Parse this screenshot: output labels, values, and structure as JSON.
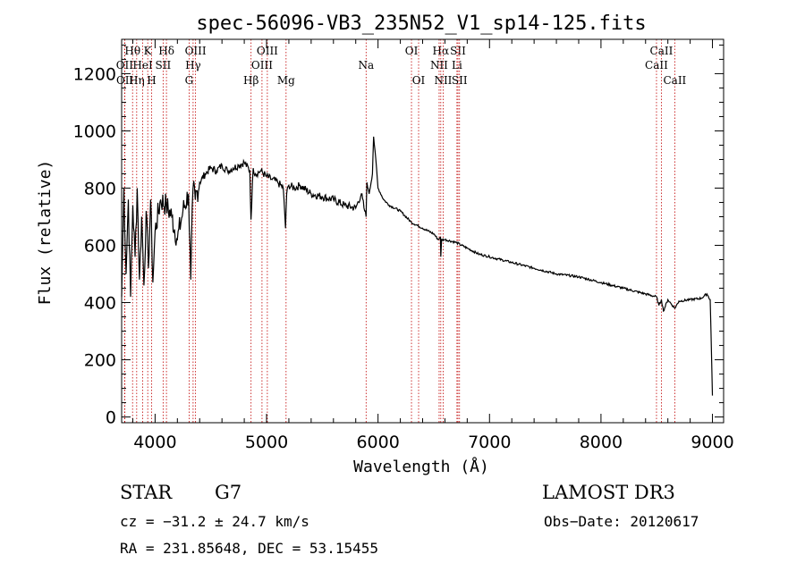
{
  "chart_data": {
    "type": "line",
    "title": "spec-56096-VB3_235N52_V1_sp14-125.fits",
    "xlabel": "Wavelength (Å)",
    "ylabel": "Flux (relative)",
    "xlim": [
      3700,
      9100
    ],
    "ylim": [
      -20,
      1320
    ],
    "xticks": [
      4000,
      5000,
      6000,
      7000,
      8000,
      9000
    ],
    "yticks": [
      0,
      200,
      400,
      600,
      800,
      1000,
      1200
    ],
    "series": [
      {
        "name": "flux",
        "x": [
          3700,
          3720,
          3740,
          3760,
          3780,
          3800,
          3820,
          3840,
          3860,
          3880,
          3900,
          3920,
          3940,
          3960,
          3980,
          4000,
          4050,
          4100,
          4150,
          4200,
          4250,
          4300,
          4320,
          4340,
          4360,
          4400,
          4450,
          4500,
          4550,
          4600,
          4650,
          4700,
          4750,
          4800,
          4850,
          4860,
          4880,
          4900,
          4950,
          5000,
          5050,
          5100,
          5150,
          5170,
          5180,
          5200,
          5250,
          5300,
          5400,
          5500,
          5600,
          5700,
          5800,
          5850,
          5880,
          5893,
          5900,
          5920,
          5950,
          5960,
          5980,
          6000,
          6050,
          6100,
          6200,
          6300,
          6400,
          6500,
          6540,
          6560,
          6563,
          6570,
          6600,
          6700,
          6800,
          6900,
          7000,
          7200,
          7400,
          7600,
          7800,
          8000,
          8200,
          8400,
          8498,
          8520,
          8542,
          8560,
          8600,
          8662,
          8700,
          8800,
          8900,
          8950,
          8980,
          9000
        ],
        "y": [
          420,
          800,
          500,
          760,
          420,
          740,
          560,
          800,
          480,
          700,
          460,
          720,
          520,
          760,
          470,
          650,
          760,
          740,
          700,
          620,
          720,
          780,
          480,
          800,
          760,
          820,
          850,
          870,
          860,
          880,
          860,
          870,
          880,
          890,
          860,
          690,
          870,
          850,
          860,
          840,
          830,
          820,
          800,
          660,
          780,
          810,
          800,
          810,
          780,
          770,
          760,
          740,
          730,
          780,
          720,
          700,
          820,
          780,
          850,
          980,
          900,
          800,
          760,
          740,
          720,
          680,
          660,
          640,
          620,
          630,
          560,
          620,
          620,
          610,
          590,
          570,
          560,
          540,
          520,
          500,
          490,
          470,
          450,
          430,
          420,
          390,
          410,
          370,
          410,
          380,
          405,
          410,
          415,
          430,
          410,
          75
        ]
      }
    ],
    "line_marks": [
      {
        "label": "Hθ",
        "x": 3798,
        "row": 1
      },
      {
        "label": "OII",
        "x": 3727,
        "row": 2
      },
      {
        "label": "OII",
        "x": 3729,
        "row": 3
      },
      {
        "label": "Hη",
        "x": 3835,
        "row": 3
      },
      {
        "label": "K",
        "x": 3934,
        "row": 1
      },
      {
        "label": "HeI",
        "x": 3889,
        "row": 2
      },
      {
        "label": "H",
        "x": 3969,
        "row": 3
      },
      {
        "label": "Hδ",
        "x": 4102,
        "row": 1
      },
      {
        "label": "SII",
        "x": 4072,
        "row": 2
      },
      {
        "label": "OIII",
        "x": 4363,
        "row": 1
      },
      {
        "label": "Hγ",
        "x": 4341,
        "row": 2
      },
      {
        "label": "G",
        "x": 4305,
        "row": 3
      },
      {
        "label": "Hβ",
        "x": 4861,
        "row": 3
      },
      {
        "label": "OIII",
        "x": 5007,
        "row": 1
      },
      {
        "label": "OIII",
        "x": 4959,
        "row": 2
      },
      {
        "label": "Mg",
        "x": 5175,
        "row": 3
      },
      {
        "label": "Na",
        "x": 5893,
        "row": 2
      },
      {
        "label": "OI",
        "x": 6300,
        "row": 1
      },
      {
        "label": "OI",
        "x": 6364,
        "row": 3
      },
      {
        "label": "Hα",
        "x": 6563,
        "row": 1
      },
      {
        "label": "NII",
        "x": 6548,
        "row": 2
      },
      {
        "label": "NII",
        "x": 6584,
        "row": 3
      },
      {
        "label": "SII",
        "x": 6717,
        "row": 1
      },
      {
        "label": "Li",
        "x": 6708,
        "row": 2
      },
      {
        "label": "SII",
        "x": 6731,
        "row": 3
      },
      {
        "label": "CaII",
        "x": 8542,
        "row": 1
      },
      {
        "label": "CaII",
        "x": 8498,
        "row": 2
      },
      {
        "label": "CaII",
        "x": 8662,
        "row": 3
      }
    ]
  },
  "info": {
    "object_class": "STAR",
    "subclass": "G7",
    "survey": "LAMOST DR3",
    "redshift": "cz = −31.2 ± 24.7 km/s",
    "obs_date": "Obs−Date: 20120617",
    "coords": "RA = 231.85648, DEC =  53.15455"
  },
  "colors": {
    "line_marker": "#c00000",
    "spectrum": "#000000",
    "axes": "#000000"
  }
}
